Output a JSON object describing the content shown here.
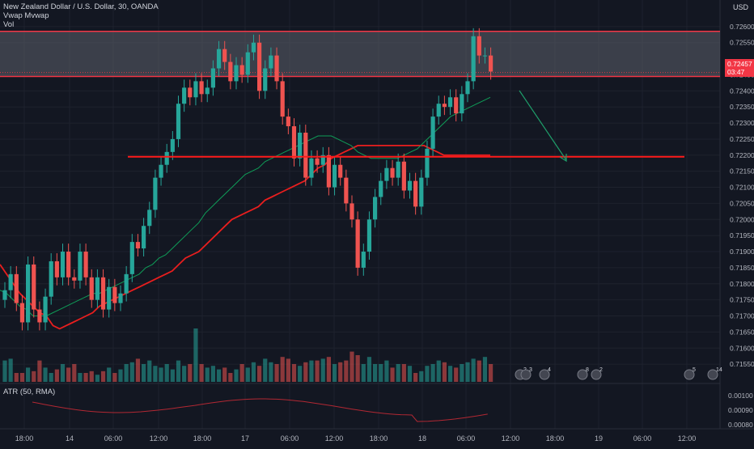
{
  "legend": {
    "symbol": "New Zealand Dollar / U.S. Dollar, 30, OANDA",
    "indicator1": "Vwap Mvwap",
    "indicator2": "Vol"
  },
  "atr_label": "ATR (50, RMA)",
  "currency": "USD",
  "last_price": {
    "value": "0.72457",
    "countdown": "03:47"
  },
  "colors": {
    "background": "#131722",
    "up": "#26a69a",
    "down": "#ef5350",
    "vwap": "#e91e1e",
    "mvwap": "#0f9d58",
    "zone_fill": "#5d606b",
    "zone_border": "#f23645",
    "horizontal_line": "#ff1a1a",
    "arrow": "#1e9e6a",
    "atr": "#b22833"
  },
  "chart_data": [
    {
      "type": "candlestick",
      "title": "New Zealand Dollar / U.S. Dollar, 30, OANDA",
      "ylim": [
        0.715,
        0.7266
      ],
      "y_ticks": [
        "0.72600",
        "0.72550",
        "0.72450",
        "0.72400",
        "0.72350",
        "0.72300",
        "0.72250",
        "0.72200",
        "0.72150",
        "0.72100",
        "0.72050",
        "0.72000",
        "0.71950",
        "0.71900",
        "0.71850",
        "0.71800",
        "0.71750",
        "0.71700",
        "0.71650",
        "0.71600",
        "0.71550"
      ],
      "x_ticks": [
        "18:00",
        "14",
        "06:00",
        "12:00",
        "18:00",
        "17",
        "06:00",
        "12:00",
        "18:00",
        "18",
        "06:00",
        "12:00",
        "18:00",
        "19",
        "06:00",
        "12:00"
      ],
      "closes": [
        0.7178,
        0.7183,
        0.7174,
        0.7168,
        0.7186,
        0.7172,
        0.7168,
        0.7176,
        0.7187,
        0.7182,
        0.719,
        0.7182,
        0.7181,
        0.719,
        0.7182,
        0.7175,
        0.7182,
        0.7172,
        0.7179,
        0.7174,
        0.7177,
        0.7183,
        0.7193,
        0.7191,
        0.7198,
        0.7203,
        0.7213,
        0.7217,
        0.7221,
        0.7225,
        0.7236,
        0.7241,
        0.7238,
        0.7243,
        0.7239,
        0.7241,
        0.7247,
        0.7253,
        0.7249,
        0.7243,
        0.7248,
        0.7245,
        0.7252,
        0.7255,
        0.724,
        0.7247,
        0.7251,
        0.7243,
        0.7232,
        0.7229,
        0.7219,
        0.7227,
        0.7213,
        0.7219,
        0.7217,
        0.722,
        0.721,
        0.7217,
        0.7213,
        0.7205,
        0.72,
        0.7185,
        0.719,
        0.72,
        0.7207,
        0.7212,
        0.7216,
        0.7213,
        0.7218,
        0.7209,
        0.7212,
        0.7204,
        0.7213,
        0.7222,
        0.7232,
        0.7236,
        0.7235,
        0.7238,
        0.7233,
        0.7239,
        0.7243,
        0.7257,
        0.7251,
        0.7251,
        0.7246
      ],
      "series": [
        {
          "name": "Vwap",
          "values": [
            0.7186,
            0.7183,
            0.718,
            0.7177,
            0.7175,
            0.7173,
            0.7171,
            0.717,
            0.7167,
            0.7166,
            0.7167,
            0.7168,
            0.7169,
            0.717,
            0.7171,
            0.7173,
            0.7174,
            0.7175,
            0.7176,
            0.7177,
            0.7178,
            0.7179,
            0.718,
            0.7181,
            0.7182,
            0.7183,
            0.7184,
            0.7186,
            0.7188,
            0.7189,
            0.719,
            0.7192,
            0.7194,
            0.7196,
            0.7198,
            0.72,
            0.7201,
            0.7202,
            0.7203,
            0.7204,
            0.7206,
            0.7207,
            0.7208,
            0.7209,
            0.721,
            0.7211,
            0.7212,
            0.7214,
            0.7216,
            0.7217,
            0.7219,
            0.722,
            0.7221,
            0.7222,
            0.7223,
            0.7223,
            0.7223,
            0.7223,
            0.7223,
            0.7223,
            0.7223,
            0.7223,
            0.7223,
            0.7223,
            0.7223,
            0.7222,
            0.7221,
            0.722,
            0.722,
            0.722,
            0.722,
            0.722,
            0.722,
            0.722,
            0.722
          ]
        },
        {
          "name": "Mvwap",
          "values": [
            0.7178,
            0.7177,
            0.7175,
            0.7173,
            0.7172,
            0.717,
            0.717,
            0.717,
            0.7171,
            0.7172,
            0.7173,
            0.7174,
            0.7175,
            0.7176,
            0.7177,
            0.7177,
            0.7178,
            0.7179,
            0.718,
            0.7181,
            0.7182,
            0.7183,
            0.7185,
            0.7186,
            0.7188,
            0.7189,
            0.7191,
            0.7193,
            0.7195,
            0.7197,
            0.7199,
            0.7202,
            0.7204,
            0.7206,
            0.7208,
            0.721,
            0.7212,
            0.7214,
            0.7215,
            0.7216,
            0.7218,
            0.7219,
            0.722,
            0.7221,
            0.7222,
            0.7223,
            0.7224,
            0.7225,
            0.7226,
            0.7226,
            0.7226,
            0.7225,
            0.7224,
            0.7223,
            0.7221,
            0.722,
            0.7219,
            0.7219,
            0.7219,
            0.7219,
            0.7219,
            0.722,
            0.7221,
            0.7222,
            0.7224,
            0.7226,
            0.7228,
            0.723,
            0.7232,
            0.7233,
            0.7234,
            0.7235,
            0.7236,
            0.7237,
            0.7238
          ]
        }
      ],
      "resistance_zone": [
        0.72445,
        0.72585
      ],
      "support_line": 0.72195,
      "volume": [
        0.12,
        0.13,
        0.05,
        0.05,
        0.08,
        0.06,
        0.12,
        0.08,
        0.05,
        0.07,
        0.1,
        0.08,
        0.1,
        0.05,
        0.05,
        0.06,
        0.04,
        0.06,
        0.08,
        0.05,
        0.07,
        0.1,
        0.11,
        0.13,
        0.1,
        0.12,
        0.09,
        0.08,
        0.1,
        0.07,
        0.12,
        0.09,
        0.1,
        0.3,
        0.1,
        0.08,
        0.09,
        0.07,
        0.08,
        0.05,
        0.07,
        0.1,
        0.08,
        0.11,
        0.09,
        0.13,
        0.11,
        0.1,
        0.14,
        0.13,
        0.1,
        0.09,
        0.11,
        0.12,
        0.12,
        0.13,
        0.14,
        0.1,
        0.11,
        0.12,
        0.17,
        0.15,
        0.1,
        0.14,
        0.1,
        0.1,
        0.12,
        0.08,
        0.1,
        0.1,
        0.09,
        0.05,
        0.06,
        0.09,
        0.1,
        0.12,
        0.11,
        0.09,
        0.08,
        0.1,
        0.11,
        0.13,
        0.12,
        0.14,
        0.1
      ],
      "atr_ticks": [
        "0.00100",
        "0.00090",
        "0.00080"
      ],
      "event_markers": [
        "2",
        "3",
        "4",
        "8",
        "2",
        "5",
        "14"
      ]
    }
  ]
}
